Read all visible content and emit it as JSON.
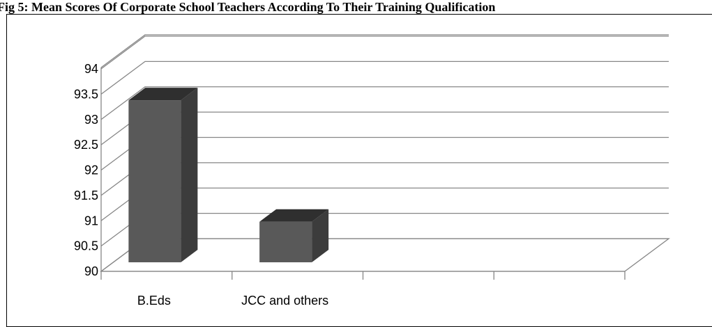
{
  "chart_data": {
    "type": "bar",
    "title": "Fig 5: Mean Scores Of Corporate School Teachers According To Their Training Qualification",
    "categories": [
      "B.Eds",
      "JCC and others",
      "",
      ""
    ],
    "values": [
      93.6,
      91.2,
      null,
      null
    ],
    "ylim": [
      90,
      94
    ],
    "yticks": [
      "90",
      "90.5",
      "91",
      "91.5",
      "92",
      "92.5",
      "93",
      "93.5",
      "94"
    ],
    "xlabel": "",
    "ylabel": "",
    "grid": true,
    "legend": "none",
    "style": "3d-column",
    "colors": {
      "bar_front": "#595959",
      "bar_side": "#3c3c3c",
      "bar_top": "#2f2f2f",
      "grid": "#868686"
    }
  }
}
